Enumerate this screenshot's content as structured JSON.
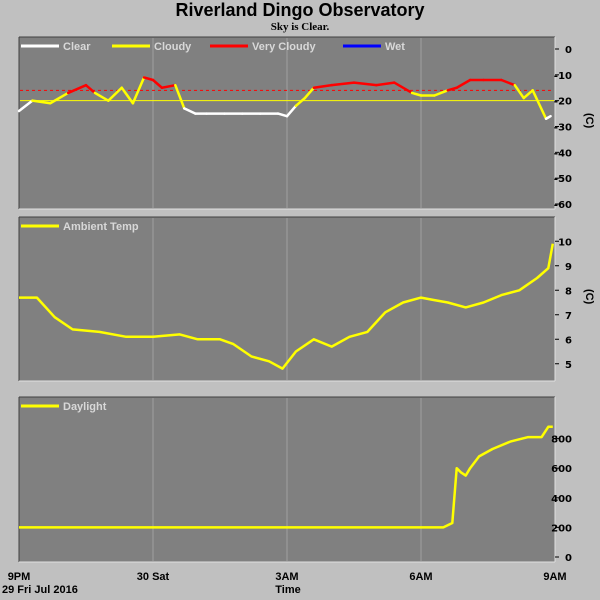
{
  "title": "Riverland Dingo Observatory",
  "subtitle": "Sky is Clear.",
  "date_label": "29 Fri Jul 2016",
  "x_axis_title": "Time",
  "x_ticks": [
    {
      "t": 0,
      "label": "9PM"
    },
    {
      "t": 3,
      "label": "30 Sat"
    },
    {
      "t": 6,
      "label": "3AM"
    },
    {
      "t": 9,
      "label": "6AM"
    },
    {
      "t": 12,
      "label": "9AM"
    }
  ],
  "colors": {
    "plot_bg": "#808080",
    "grid": "#a0a0a0",
    "clear": "#ffffff",
    "cloudy": "#ffff00",
    "very_cloudy": "#ff0000",
    "wet": "#0000ff",
    "temp": "#ffff00",
    "daylight": "#ffff00"
  },
  "chart_data": [
    {
      "type": "line",
      "name": "sky",
      "legend": [
        {
          "label": "Clear",
          "color": "#ffffff"
        },
        {
          "label": "Cloudy",
          "color": "#ffff00"
        },
        {
          "label": "Very Cloudy",
          "color": "#ff0000"
        },
        {
          "label": "Wet",
          "color": "#0000ff"
        }
      ],
      "unit": "(C)",
      "ylim": [
        -60,
        0
      ],
      "yticks": [
        0,
        -10,
        -20,
        -30,
        -40,
        -50,
        -60
      ],
      "thresholds": [
        {
          "y": -16,
          "color": "#ff0000",
          "style": "dashed"
        },
        {
          "y": -20,
          "color": "#ffff00",
          "style": "solid"
        }
      ],
      "x": [
        0,
        0.3,
        0.7,
        1.1,
        1.5,
        1.7,
        2.0,
        2.3,
        2.55,
        2.8,
        3.0,
        3.2,
        3.5,
        3.7,
        3.95,
        4.2,
        4.6,
        5.0,
        5.4,
        5.8,
        6.0,
        6.2,
        6.4,
        6.6,
        7.0,
        7.5,
        8.0,
        8.4,
        8.8,
        9.0,
        9.3,
        9.6,
        9.8,
        10.1,
        10.4,
        10.8,
        11.1,
        11.3,
        11.5,
        11.8,
        11.9
      ],
      "values": [
        -24,
        -20,
        -21,
        -17,
        -14,
        -17,
        -20,
        -15,
        -21,
        -11,
        -12,
        -15,
        -14,
        -23,
        -25,
        -25,
        -25,
        -25,
        -25,
        -25,
        -26,
        -22,
        -19,
        -15,
        -14,
        -13,
        -14,
        -13,
        -17,
        -18,
        -18,
        -16,
        -15,
        -12,
        -12,
        -12,
        -14,
        -19,
        -16,
        -27,
        -26
      ]
    },
    {
      "type": "line",
      "name": "ambient",
      "legend": [
        {
          "label": "Ambient Temp",
          "color": "#ffff00"
        }
      ],
      "unit": "(C)",
      "ylim": [
        4.5,
        10.5
      ],
      "yticks": [
        5,
        6,
        7,
        8,
        9,
        10
      ],
      "x": [
        0,
        0.4,
        0.8,
        1.2,
        1.8,
        2.4,
        3.0,
        3.6,
        4.0,
        4.5,
        4.8,
        5.2,
        5.6,
        5.9,
        6.2,
        6.6,
        7.0,
        7.4,
        7.8,
        8.2,
        8.6,
        9.0,
        9.3,
        9.6,
        10.0,
        10.4,
        10.8,
        11.2,
        11.6,
        11.85,
        11.95
      ],
      "values": [
        7.7,
        7.7,
        6.9,
        6.4,
        6.3,
        6.1,
        6.1,
        6.2,
        6.0,
        6.0,
        5.8,
        5.3,
        5.1,
        4.8,
        5.5,
        6.0,
        5.7,
        6.1,
        6.3,
        7.1,
        7.5,
        7.7,
        7.6,
        7.5,
        7.3,
        7.5,
        7.8,
        8.0,
        8.5,
        8.9,
        9.9
      ]
    },
    {
      "type": "line",
      "name": "daylight",
      "legend": [
        {
          "label": "Daylight",
          "color": "#ffff00"
        }
      ],
      "ylim": [
        0,
        1000
      ],
      "yticks": [
        0,
        200,
        400,
        600,
        800
      ],
      "x": [
        0,
        1,
        2,
        3,
        4,
        5,
        6,
        7,
        8,
        9,
        9.5,
        9.7,
        9.8,
        9.9,
        10.0,
        10.1,
        10.3,
        10.6,
        11.0,
        11.4,
        11.7,
        11.85,
        11.95
      ],
      "values": [
        200,
        200,
        200,
        200,
        200,
        200,
        200,
        200,
        200,
        200,
        200,
        230,
        600,
        570,
        550,
        600,
        680,
        730,
        780,
        810,
        810,
        880,
        880
      ]
    }
  ]
}
